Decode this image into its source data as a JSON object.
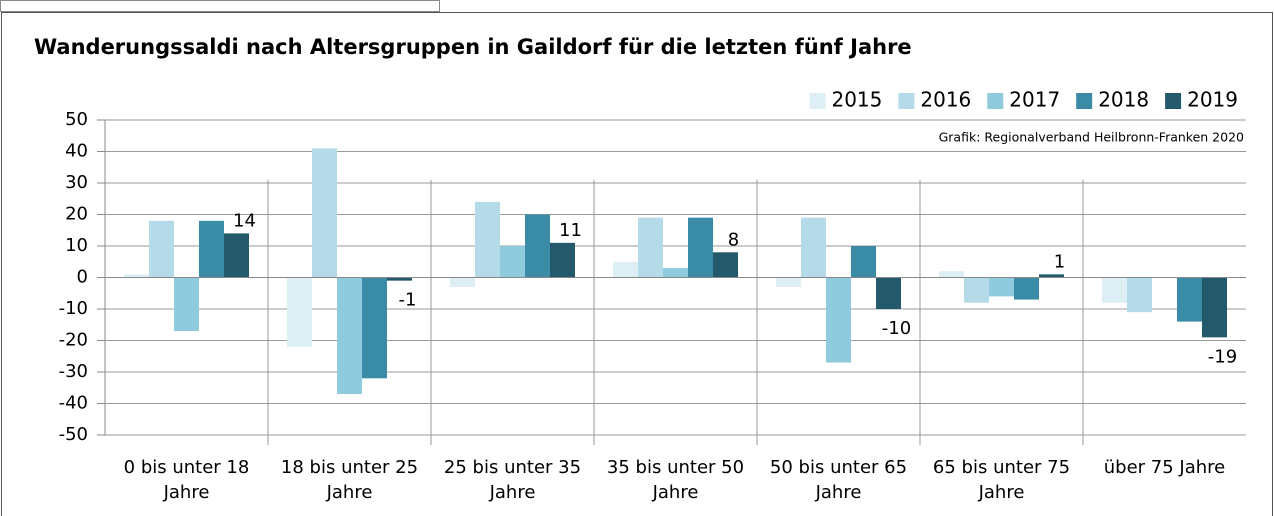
{
  "chart_data": {
    "type": "bar",
    "title": "Wanderungssaldi nach Altersgruppen in Gaildorf für die letzten fünf Jahre",
    "annotation": "Grafik: Regionalverband Heilbronn-Franken 2020",
    "categories": [
      "0 bis unter 18 Jahre",
      "18 bis unter 25 Jahre",
      "25 bis unter 35 Jahre",
      "35 bis unter 50 Jahre",
      "50 bis unter 65 Jahre",
      "65 bis unter 75 Jahre",
      "über 75 Jahre"
    ],
    "series": [
      {
        "name": "2015",
        "color": "#ddeef5",
        "values": [
          1,
          -22,
          -3,
          5,
          -3,
          2,
          -8
        ]
      },
      {
        "name": "2016",
        "color": "#b5dbe8",
        "values": [
          18,
          41,
          24,
          19,
          19,
          -8,
          -11
        ]
      },
      {
        "name": "2017",
        "color": "#8fcbdd",
        "values": [
          -17,
          -37,
          10,
          3,
          -27,
          -6,
          0
        ]
      },
      {
        "name": "2018",
        "color": "#3a8ca6",
        "values": [
          18,
          -32,
          20,
          19,
          10,
          -7,
          -14
        ]
      },
      {
        "name": "2019",
        "color": "#24596c",
        "values": [
          14,
          -1,
          11,
          8,
          -10,
          1,
          -19
        ],
        "data_labels": true
      }
    ],
    "ylim": [
      -50,
      50
    ],
    "yticks": [
      -50,
      -40,
      -30,
      -20,
      -10,
      0,
      10,
      20,
      30,
      40,
      50
    ],
    "grid": true,
    "legend": "top-right"
  }
}
